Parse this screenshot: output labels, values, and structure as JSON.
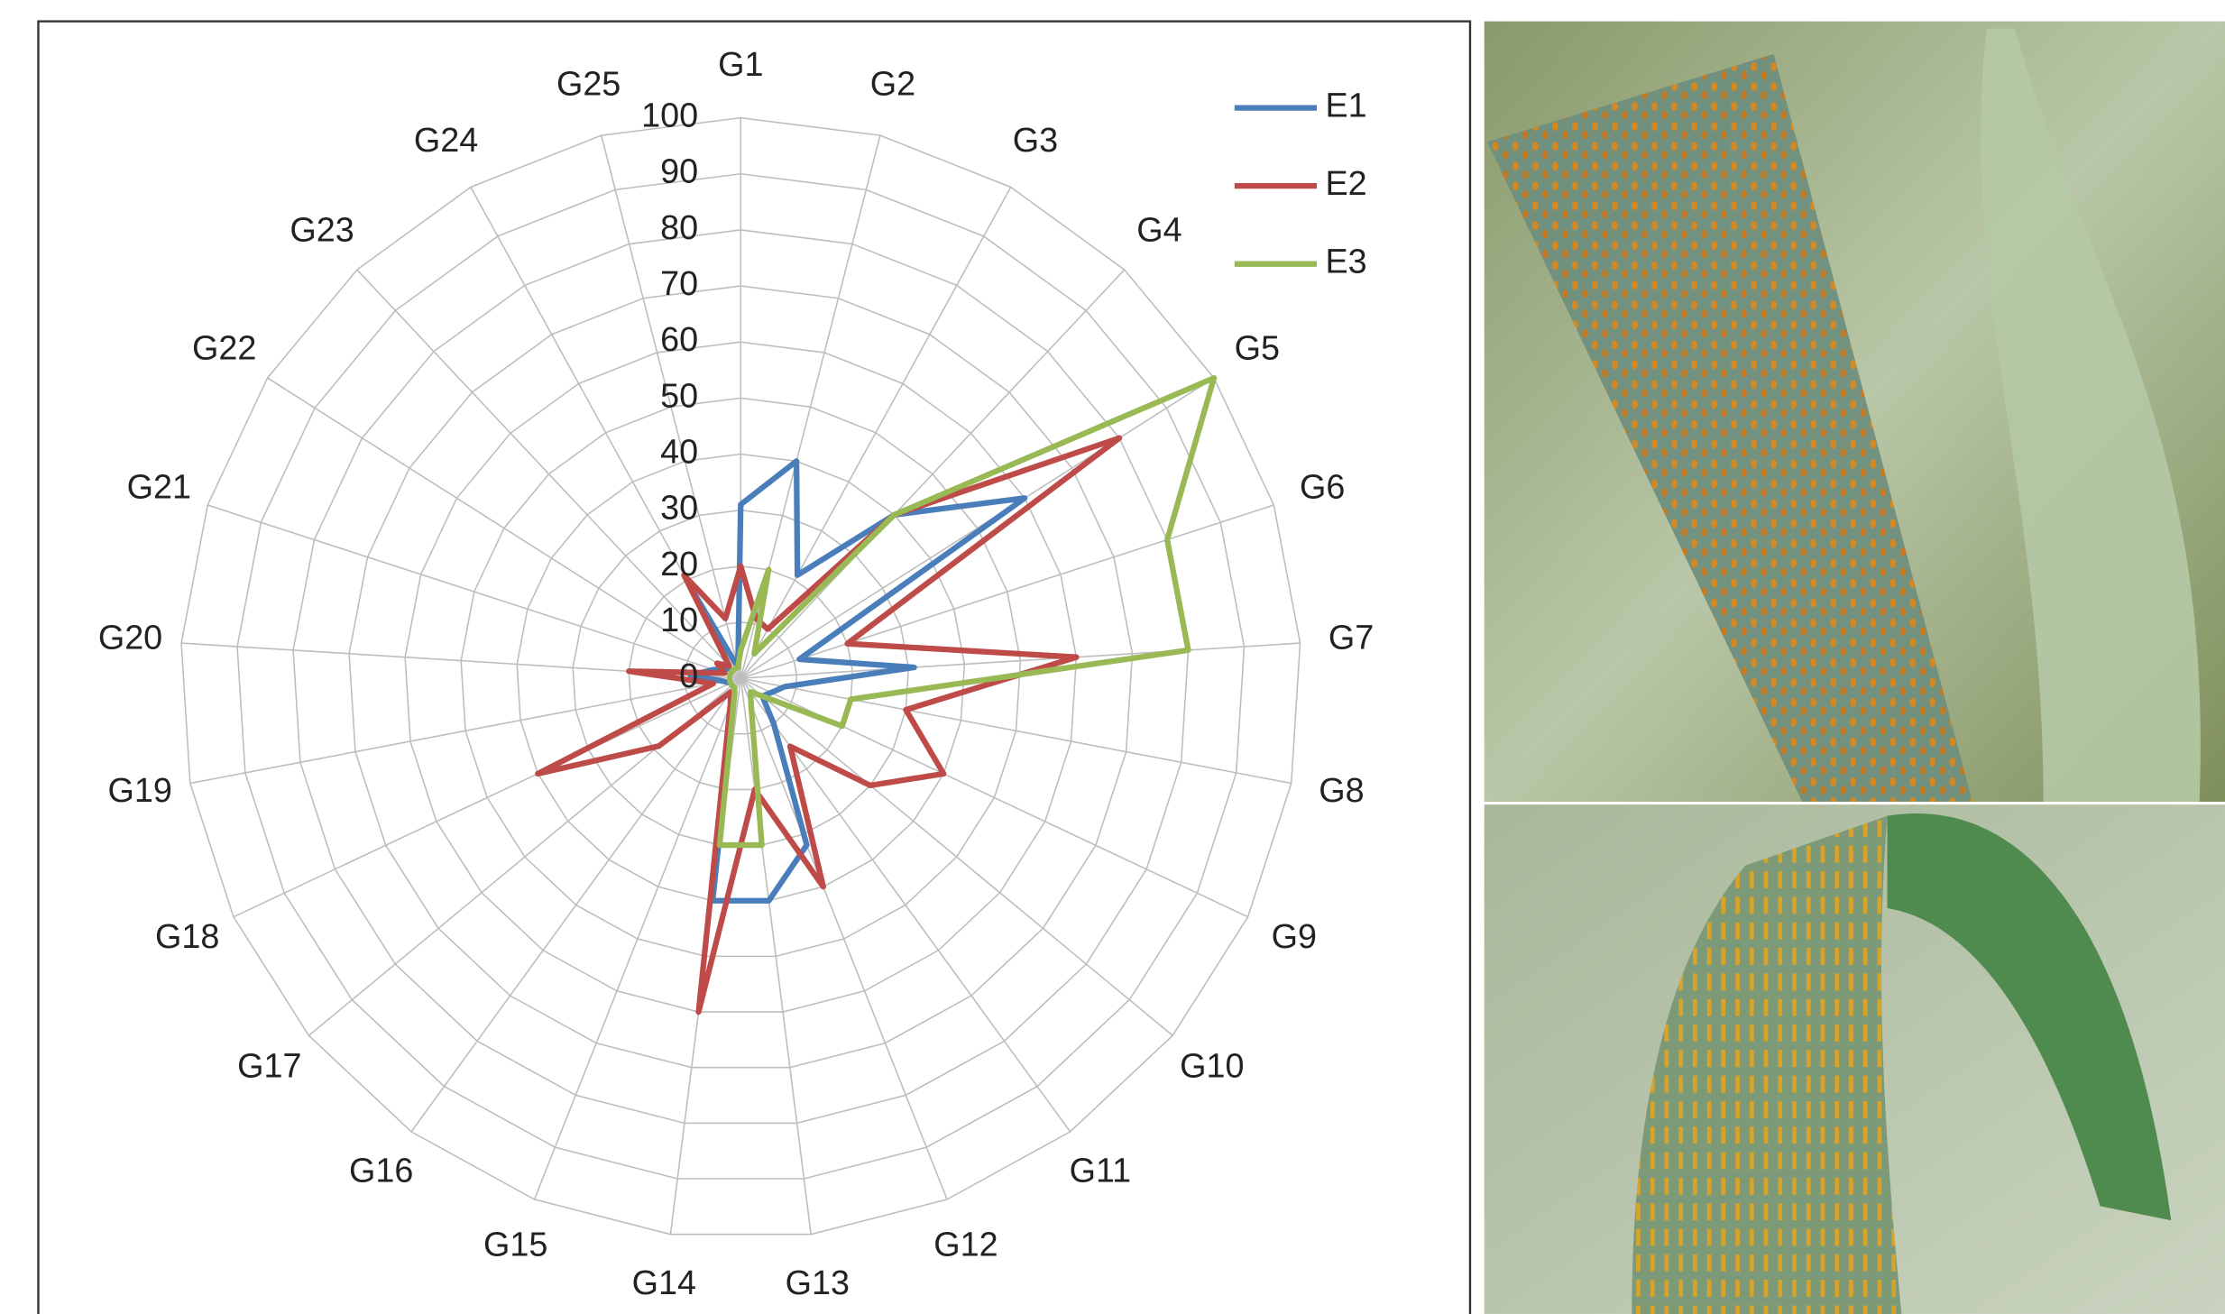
{
  "chart_data": {
    "type": "radar",
    "categories": [
      "G1",
      "G2",
      "G3",
      "G4",
      "G5",
      "G6",
      "G7",
      "G8",
      "G9",
      "G10",
      "G11",
      "G12",
      "G13",
      "G14",
      "G15",
      "G16",
      "G17",
      "G18",
      "G19",
      "G20",
      "G21",
      "G22",
      "G23",
      "G24",
      "G25"
    ],
    "series": [
      {
        "name": "E1",
        "color": "#4a7ebb",
        "values": [
          31,
          40,
          21,
          40,
          60,
          11,
          31,
          8,
          6,
          5,
          10,
          32,
          40,
          40,
          3,
          2,
          2,
          2,
          3,
          9,
          5,
          3,
          3,
          18,
          2
        ]
      },
      {
        "name": "E2",
        "color": "#be4b48",
        "values": [
          20,
          11,
          10,
          40,
          80,
          20,
          60,
          30,
          40,
          30,
          15,
          40,
          20,
          60,
          5,
          3,
          19,
          40,
          5,
          20,
          3,
          5,
          3,
          21,
          11
        ]
      },
      {
        "name": "E3",
        "color": "#98b954",
        "values": [
          5,
          20,
          5,
          40,
          100,
          80,
          80,
          20,
          20,
          5,
          3,
          5,
          30,
          30,
          3,
          2,
          2,
          2,
          2,
          2,
          2,
          2,
          2,
          2,
          2
        ]
      }
    ],
    "rlim": [
      0,
      100
    ],
    "rticks": [
      0,
      10,
      20,
      30,
      40,
      50,
      60,
      70,
      80,
      90,
      100
    ],
    "grid": true,
    "legend": "top-right"
  }
}
